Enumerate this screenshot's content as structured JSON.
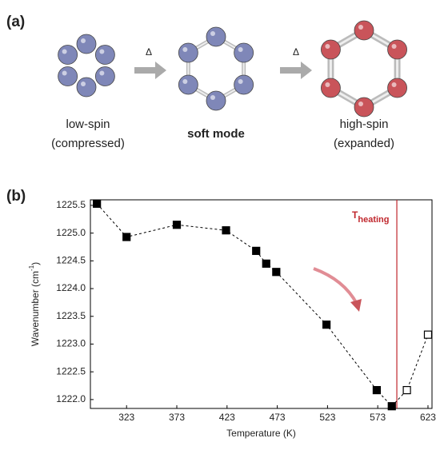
{
  "panel_a": {
    "label": "(a)",
    "delta": "Δ",
    "states": [
      {
        "line1": "low-spin",
        "line2": "(compressed)"
      },
      {
        "line1": "soft mode"
      },
      {
        "line1": "high-spin",
        "line2": "(expanded)"
      }
    ]
  },
  "chart_data": {
    "type": "line",
    "panel_label": "(b)",
    "xlabel": "Temperature (K)",
    "ylabel": [
      "Wavenumber (cm",
      "-1",
      ")"
    ],
    "x": [
      293.5,
      323,
      373,
      422,
      452,
      462,
      472,
      522,
      572,
      587,
      602,
      623
    ],
    "series": [
      {
        "color": "#000000",
        "values": [
          1225.53,
          1224.93,
          1225.15,
          1225.05,
          1224.68,
          1224.45,
          1224.3,
          1223.35,
          1222.17,
          1221.88,
          1222.17,
          1223.17
        ],
        "marker_filled": [
          true,
          true,
          true,
          true,
          true,
          true,
          true,
          true,
          true,
          true,
          false,
          false
        ]
      }
    ],
    "xlim": [
      287,
      627
    ],
    "ylim": [
      1221.84,
      1225.6
    ],
    "xticks": [
      323,
      373,
      423,
      473,
      523,
      573,
      623
    ],
    "yticks": [
      {
        "value": 1222,
        "label": "1222.0"
      },
      1222.5,
      {
        "value": 1223,
        "label": "1223.0"
      },
      1223.5,
      {
        "value": 1224,
        "label": "1224.0"
      },
      1224.5,
      {
        "value": 1225,
        "label": "1225.0"
      },
      1225.5
    ],
    "vline": {
      "x": 592,
      "color": "#c0272d",
      "label": "T",
      "label_sub": "heating"
    }
  }
}
